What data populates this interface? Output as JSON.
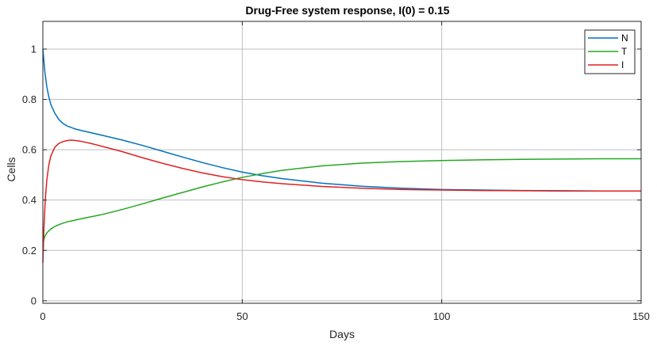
{
  "chart_data": {
    "type": "line",
    "title": "Drug-Free system response, I(0) = 0.15",
    "xlabel": "Days",
    "ylabel": "Cells",
    "xlim": [
      0,
      150
    ],
    "ylim": [
      -0.01,
      1.11
    ],
    "xticks": [
      0,
      50,
      100,
      150
    ],
    "yticks": [
      0,
      0.2,
      0.4,
      0.6,
      0.8,
      1
    ],
    "xtick_labels": [
      "0",
      "50",
      "100",
      "150"
    ],
    "ytick_labels": [
      "0",
      "0.2",
      "0.4",
      "0.6",
      "0.8",
      "1"
    ],
    "grid": true,
    "legend_position": "top-right",
    "series": [
      {
        "name": "N",
        "color": "#0072BD",
        "x": [
          0,
          0.5,
          1,
          1.5,
          2,
          3,
          4,
          5,
          6,
          8,
          10,
          15,
          20,
          25,
          30,
          35,
          40,
          45,
          50,
          55,
          60,
          70,
          80,
          90,
          100,
          110,
          120,
          130,
          140,
          150
        ],
        "y": [
          1.0,
          0.91,
          0.85,
          0.81,
          0.78,
          0.745,
          0.72,
          0.705,
          0.695,
          0.683,
          0.675,
          0.657,
          0.638,
          0.617,
          0.594,
          0.571,
          0.549,
          0.529,
          0.511,
          0.497,
          0.485,
          0.467,
          0.455,
          0.447,
          0.442,
          0.44,
          0.438,
          0.437,
          0.436,
          0.436
        ]
      },
      {
        "name": "T",
        "color": "#22A822",
        "x": [
          0,
          0.5,
          1,
          2,
          3,
          4,
          5,
          6,
          8,
          10,
          15,
          20,
          25,
          30,
          35,
          40,
          45,
          50,
          55,
          60,
          70,
          80,
          90,
          100,
          110,
          120,
          130,
          140,
          150
        ],
        "y": [
          0.23,
          0.255,
          0.27,
          0.285,
          0.295,
          0.302,
          0.308,
          0.313,
          0.32,
          0.327,
          0.343,
          0.363,
          0.385,
          0.408,
          0.43,
          0.452,
          0.472,
          0.49,
          0.505,
          0.518,
          0.536,
          0.547,
          0.553,
          0.557,
          0.56,
          0.562,
          0.563,
          0.564,
          0.564
        ]
      },
      {
        "name": "I",
        "color": "#E02020",
        "x": [
          0,
          0.3,
          0.6,
          1,
          1.5,
          2,
          3,
          4,
          5,
          6,
          7,
          8,
          9,
          10,
          12,
          15,
          20,
          25,
          30,
          35,
          40,
          45,
          50,
          55,
          60,
          70,
          80,
          90,
          100,
          110,
          120,
          130,
          140,
          150
        ],
        "y": [
          0.15,
          0.3,
          0.4,
          0.48,
          0.54,
          0.575,
          0.61,
          0.625,
          0.632,
          0.636,
          0.638,
          0.637,
          0.635,
          0.632,
          0.625,
          0.613,
          0.592,
          0.568,
          0.546,
          0.526,
          0.508,
          0.493,
          0.481,
          0.472,
          0.465,
          0.454,
          0.447,
          0.442,
          0.44,
          0.438,
          0.437,
          0.436,
          0.436,
          0.436
        ]
      }
    ]
  }
}
